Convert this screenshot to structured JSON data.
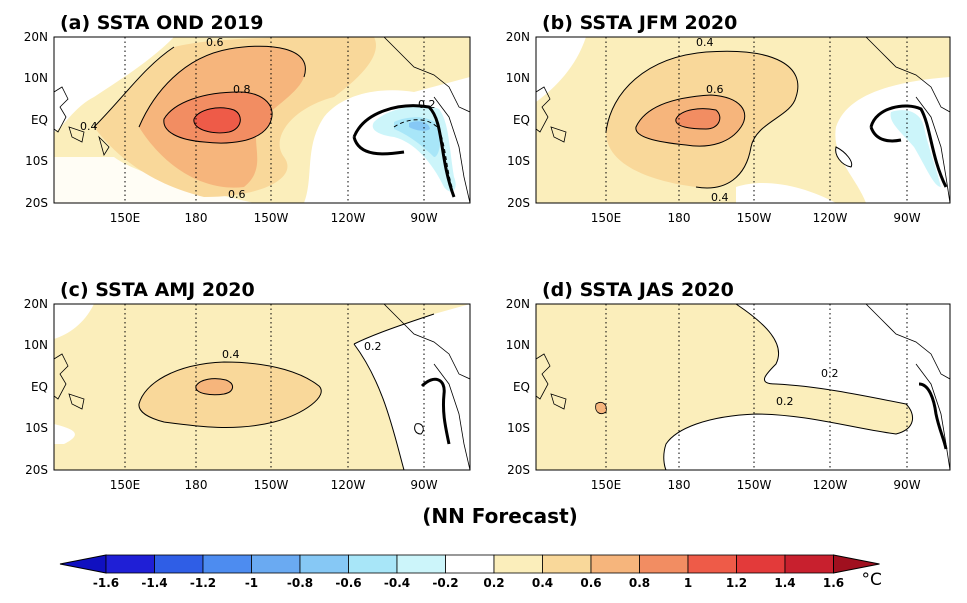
{
  "panels": [
    {
      "title": "(a) SSTA  OND 2019",
      "contour_labels": [
        "0.6",
        "0.8",
        "0.4",
        "0.6",
        "-0.2"
      ]
    },
    {
      "title": "(b) SSTA  JFM 2020",
      "contour_labels": [
        "0.4",
        "0.6",
        "0.4"
      ]
    },
    {
      "title": "(c) SSTA  AMJ 2020",
      "contour_labels": [
        "0.4",
        "0.2"
      ]
    },
    {
      "title": "(d) SSTA  JAS 2020",
      "contour_labels": [
        "0.2",
        "0.2"
      ]
    }
  ],
  "lat_ticks": [
    "20N",
    "10N",
    "EQ",
    "10S",
    "20S"
  ],
  "lon_ticks": [
    "150E",
    "180",
    "150W",
    "120W",
    "90W"
  ],
  "footer": "(NN Forecast)",
  "colorbar": {
    "labels": [
      "-1.6",
      "-1.4",
      "-1.2",
      "-1",
      "-0.8",
      "-0.6",
      "-0.4",
      "-0.2",
      "0.2",
      "0.4",
      "0.6",
      "0.8",
      "1",
      "1.2",
      "1.4",
      "1.6"
    ],
    "unit": "°C",
    "colors": [
      "#1f1fd6",
      "#2f5ee6",
      "#4d8cf0",
      "#6aaaf2",
      "#86c8f5",
      "#a8e6f8",
      "#ccf5fa",
      "#ffffff",
      "#fbeebb",
      "#f9d89a",
      "#f6b57c",
      "#f28d62",
      "#ee5b48",
      "#e33a3a",
      "#c8202e"
    ],
    "left_arrow_color": "#1010c0",
    "right_arrow_color": "#a0101f"
  }
}
